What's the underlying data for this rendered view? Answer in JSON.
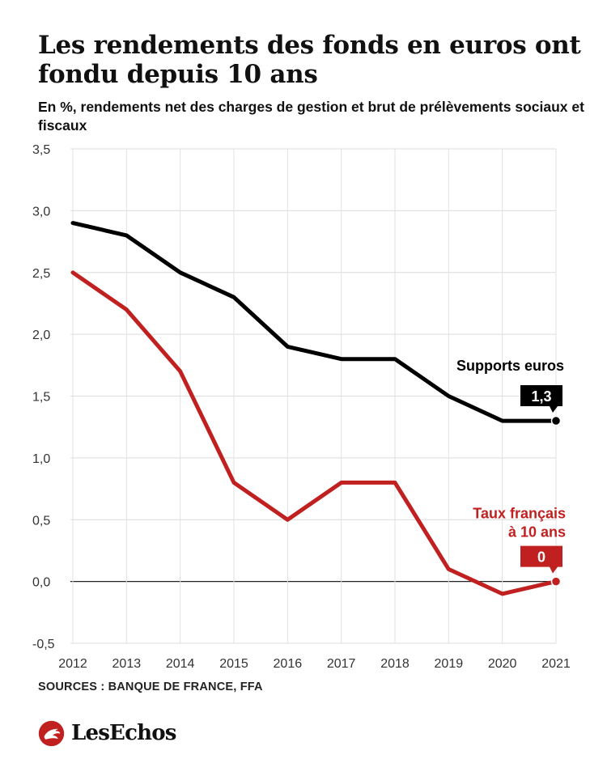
{
  "header": {
    "title": "Les rendements des fonds en euros ont fondu depuis 10 ans",
    "subtitle": "En %, rendements net des charges de gestion et brut de prélèvements sociaux et fiscaux"
  },
  "footer": {
    "source": "SOURCES : BANQUE DE FRANCE, FFA",
    "brand": "LesEchos",
    "brand_icon": "les-echos-rooster-logo"
  },
  "chart_data": {
    "type": "line",
    "title": "Les rendements des fonds en euros ont fondu depuis 10 ans",
    "subtitle": "En %, rendements net des charges de gestion et brut de prélèvements sociaux et fiscaux",
    "x": [
      2012,
      2013,
      2014,
      2015,
      2016,
      2017,
      2018,
      2019,
      2020,
      2021
    ],
    "xlabel": "",
    "ylabel": "",
    "ylim": [
      -0.5,
      3.5
    ],
    "yticks": [
      "-0,5",
      "0,0",
      "0,5",
      "1,0",
      "1,5",
      "2,0",
      "2,5",
      "3,0",
      "3,5"
    ],
    "ytick_values": [
      -0.5,
      0,
      0.5,
      1.0,
      1.5,
      2.0,
      2.5,
      3.0,
      3.5
    ],
    "grid": true,
    "legend": "none",
    "series": [
      {
        "name": "Supports euros",
        "values": [
          2.9,
          2.8,
          2.5,
          2.3,
          1.9,
          1.8,
          1.8,
          1.5,
          1.3,
          1.3
        ],
        "color": "#000000",
        "end_label": "1,3"
      },
      {
        "name": "Taux français à 10 ans",
        "name_lines": [
          "Taux français",
          "à 10 ans"
        ],
        "values": [
          2.5,
          2.2,
          1.7,
          0.8,
          0.5,
          0.8,
          0.8,
          0.1,
          -0.1,
          0.0
        ],
        "color": "#c0201f",
        "end_label": "0"
      }
    ]
  }
}
